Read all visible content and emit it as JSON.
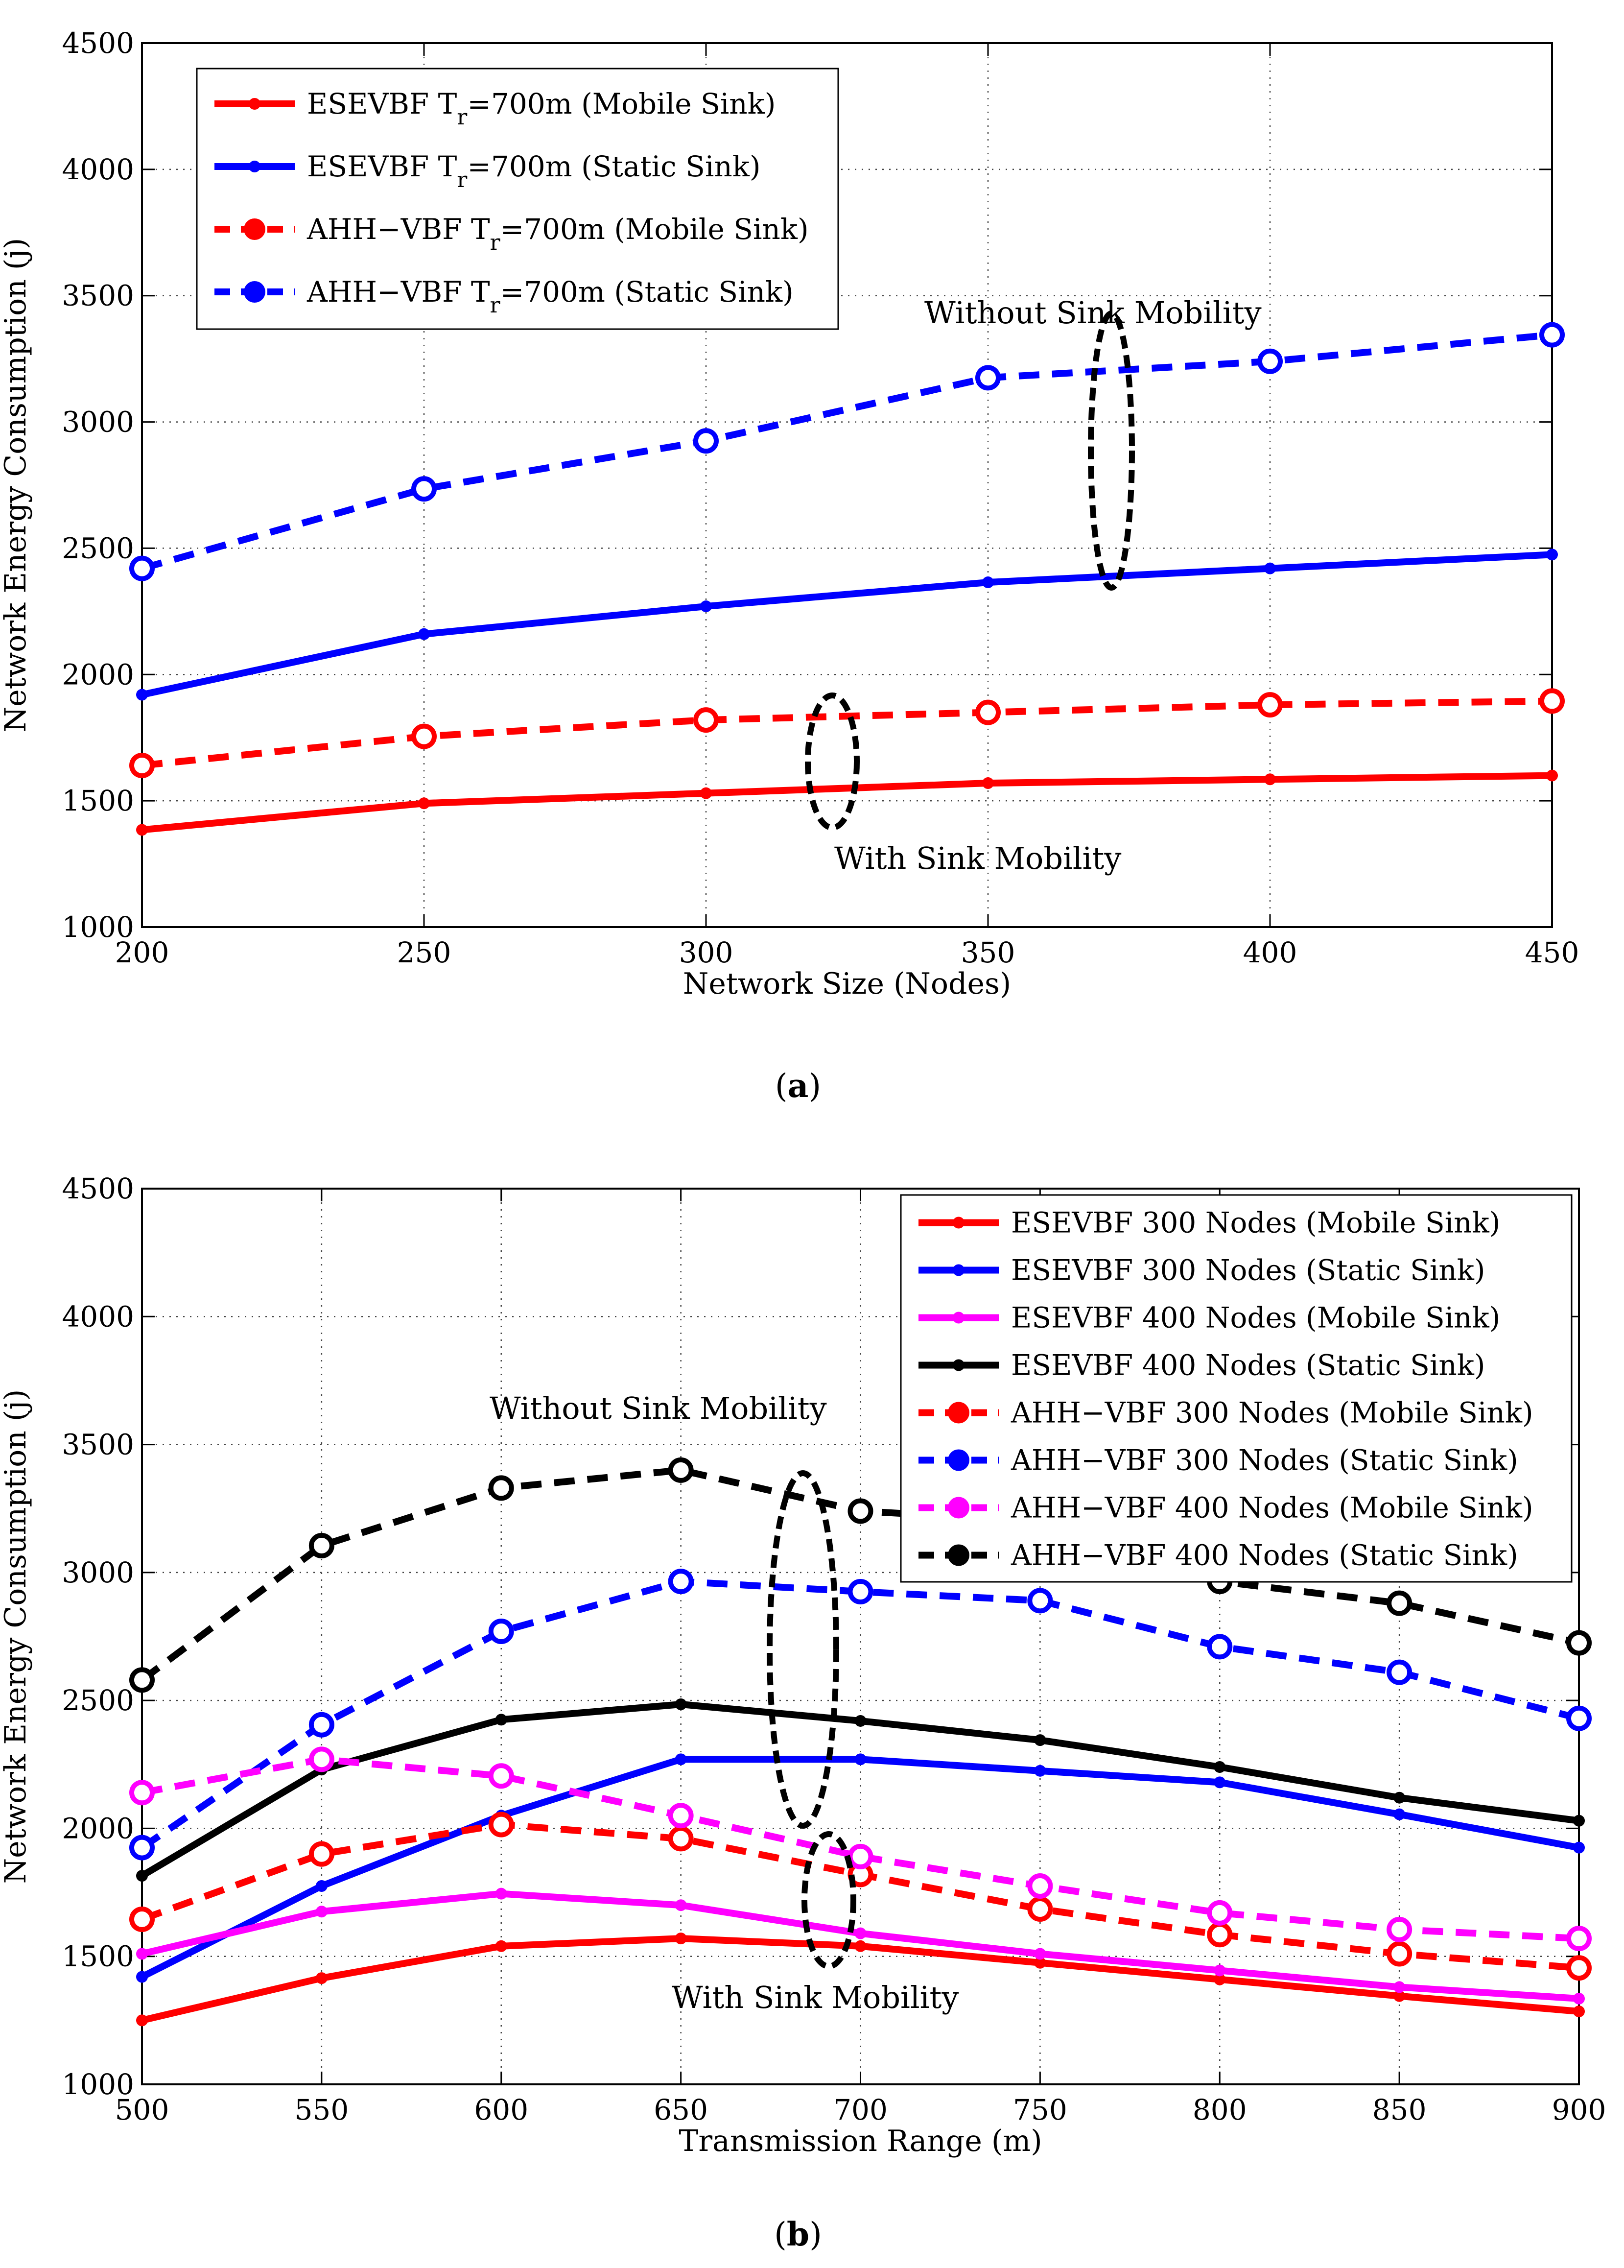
{
  "chart_data": [
    {
      "type": "line",
      "caption": "a",
      "xlabel": "Network Size (Nodes)",
      "ylabel": "Network Energy Consumption (j)",
      "x": [
        200,
        250,
        300,
        350,
        400,
        450
      ],
      "xlim": [
        200,
        450
      ],
      "ylim": [
        1000,
        4500
      ],
      "xticks": [
        "200",
        "250",
        "300",
        "350",
        "400",
        "450"
      ],
      "yticks": [
        "1000",
        "1500",
        "2000",
        "2500",
        "3000",
        "3500",
        "4000",
        "4500"
      ],
      "grid": true,
      "legend_position": "top-left",
      "annotations": [
        "Without Sink Mobility",
        "With Sink Mobility"
      ],
      "series": [
        {
          "name": "ESEVBF T",
          "sub": "r",
          "rest": "=700m (Mobile Sink)",
          "color": "#ff0000",
          "style": "solid",
          "values": [
            1385,
            1490,
            1530,
            1570,
            1585,
            1600
          ]
        },
        {
          "name": "ESEVBF T",
          "sub": "r",
          "rest": "=700m (Static Sink)",
          "color": "#0000ff",
          "style": "solid",
          "values": [
            1920,
            2160,
            2270,
            2365,
            2420,
            2475
          ]
        },
        {
          "name": "AHH−VBF T",
          "sub": "r",
          "rest": "=700m (Mobile Sink)",
          "color": "#ff0000",
          "style": "dashed",
          "values": [
            1640,
            1755,
            1820,
            1850,
            1880,
            1895
          ]
        },
        {
          "name": "AHH−VBF T",
          "sub": "r",
          "rest": "=700m (Static Sink)",
          "color": "#0000ff",
          "style": "dashed",
          "values": [
            2420,
            2735,
            2925,
            3175,
            3240,
            3345
          ]
        }
      ]
    },
    {
      "type": "line",
      "caption": "b",
      "xlabel": "Transmission Range (m)",
      "ylabel": "Network Energy Consumption (j)",
      "x": [
        500,
        550,
        600,
        650,
        700,
        750,
        800,
        850,
        900
      ],
      "xlim": [
        500,
        900
      ],
      "ylim": [
        1000,
        4500
      ],
      "xticks": [
        "500",
        "550",
        "600",
        "650",
        "700",
        "750",
        "800",
        "850",
        "900"
      ],
      "yticks": [
        "1000",
        "1500",
        "2000",
        "2500",
        "3000",
        "3500",
        "4000",
        "4500"
      ],
      "grid": true,
      "legend_position": "top-right",
      "annotations": [
        "Without Sink Mobility",
        "With Sink Mobility"
      ],
      "series": [
        {
          "name": "ESEVBF 300 Nodes (Mobile Sink)",
          "color": "#ff0000",
          "style": "solid",
          "values": [
            1250,
            1415,
            1540,
            1570,
            1540,
            1475,
            1410,
            1345,
            1285
          ]
        },
        {
          "name": "ESEVBF 300 Nodes (Static Sink)",
          "color": "#0000ff",
          "style": "solid",
          "values": [
            1420,
            1775,
            2050,
            2270,
            2270,
            2225,
            2180,
            2055,
            1925
          ]
        },
        {
          "name": "ESEVBF 400 Nodes (Mobile Sink)",
          "color": "#ff00ff",
          "style": "solid",
          "values": [
            1510,
            1675,
            1745,
            1700,
            1590,
            1510,
            1445,
            1380,
            1335
          ]
        },
        {
          "name": "ESEVBF 400 Nodes (Static Sink)",
          "color": "#000000",
          "style": "solid",
          "values": [
            1815,
            2230,
            2425,
            2485,
            2420,
            2345,
            2240,
            2120,
            2030
          ]
        },
        {
          "name": "AHH−VBF 300 Nodes (Mobile Sink)",
          "color": "#ff0000",
          "style": "dashed",
          "values": [
            1645,
            1900,
            2015,
            1960,
            1820,
            1685,
            1585,
            1510,
            1455
          ]
        },
        {
          "name": "AHH−VBF 300 Nodes (Static Sink)",
          "color": "#0000ff",
          "style": "dashed",
          "values": [
            1925,
            2405,
            2770,
            2965,
            2925,
            2890,
            2710,
            2610,
            2430
          ]
        },
        {
          "name": "AHH−VBF 400 Nodes (Mobile Sink)",
          "color": "#ff00ff",
          "style": "dashed",
          "values": [
            2140,
            2270,
            2205,
            2050,
            1890,
            1775,
            1670,
            1605,
            1570
          ]
        },
        {
          "name": "AHH−VBF 400 Nodes (Static Sink)",
          "color": "#000000",
          "style": "dashed",
          "values": [
            2580,
            3105,
            3330,
            3400,
            3240,
            3200,
            2965,
            2880,
            2725
          ]
        }
      ]
    }
  ]
}
